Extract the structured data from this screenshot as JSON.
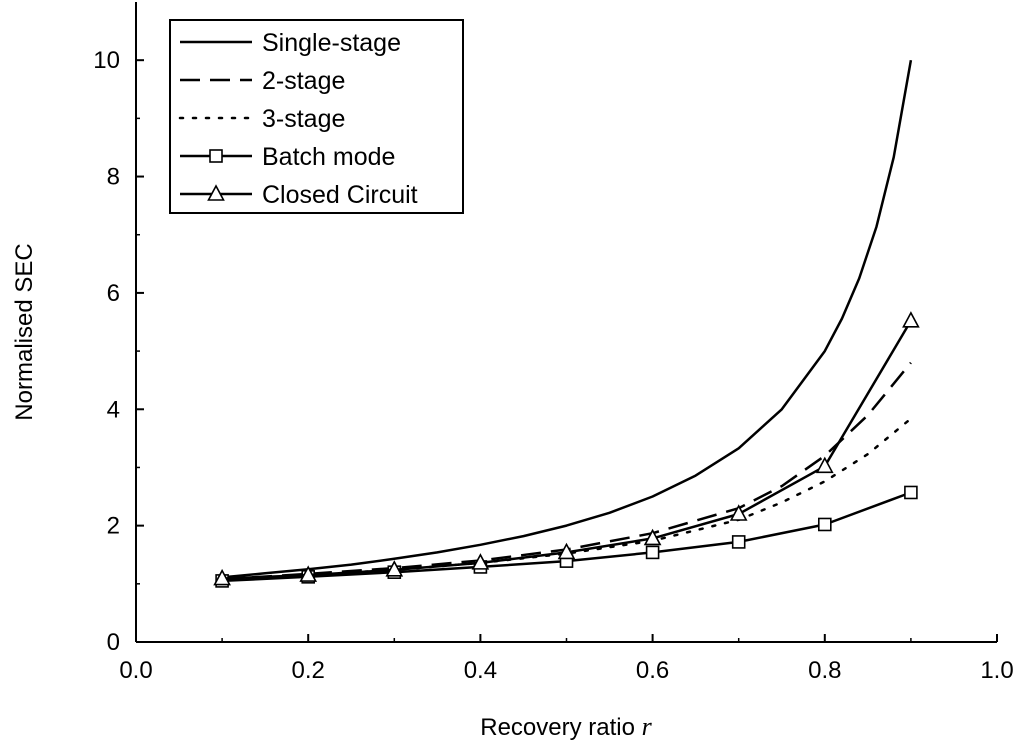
{
  "chart_data": {
    "type": "line",
    "title": "",
    "xlabel": "Recovery ratio",
    "xlabel_var": "r",
    "ylabel": "Normalised SEC",
    "xlim": [
      0.0,
      1.0
    ],
    "ylim": [
      0,
      11
    ],
    "xticks": [
      0.0,
      0.2,
      0.4,
      0.6,
      0.8,
      1.0
    ],
    "xtick_labels": [
      "0.0",
      "0.2",
      "0.4",
      "0.6",
      "0.8",
      "1.0"
    ],
    "yticks": [
      0,
      2,
      4,
      6,
      8,
      10
    ],
    "ytick_labels": [
      "0",
      "2",
      "4",
      "6",
      "8",
      "10"
    ],
    "grid": false,
    "legend_position": "top-left",
    "series": [
      {
        "name": "Single-stage",
        "style": "solid",
        "marker": "none",
        "x": [
          0.1,
          0.15,
          0.2,
          0.25,
          0.3,
          0.35,
          0.4,
          0.45,
          0.5,
          0.55,
          0.6,
          0.65,
          0.7,
          0.75,
          0.8,
          0.82,
          0.84,
          0.86,
          0.88,
          0.9
        ],
        "y": [
          1.11,
          1.18,
          1.25,
          1.33,
          1.43,
          1.54,
          1.67,
          1.82,
          2.0,
          2.22,
          2.5,
          2.86,
          3.33,
          4.0,
          5.0,
          5.56,
          6.25,
          7.14,
          8.33,
          10.0
        ]
      },
      {
        "name": "2-stage",
        "style": "dashed",
        "marker": "none",
        "x": [
          0.1,
          0.2,
          0.3,
          0.4,
          0.5,
          0.6,
          0.7,
          0.75,
          0.8,
          0.85,
          0.9
        ],
        "y": [
          1.08,
          1.17,
          1.27,
          1.4,
          1.59,
          1.87,
          2.3,
          2.68,
          3.2,
          3.9,
          4.8
        ]
      },
      {
        "name": "3-stage",
        "style": "dotted",
        "marker": "none",
        "x": [
          0.1,
          0.2,
          0.3,
          0.4,
          0.5,
          0.6,
          0.7,
          0.75,
          0.8,
          0.85,
          0.9
        ],
        "y": [
          1.07,
          1.15,
          1.24,
          1.36,
          1.52,
          1.74,
          2.1,
          2.4,
          2.76,
          3.23,
          3.84
        ]
      },
      {
        "name": "Batch mode",
        "style": "solid",
        "marker": "square",
        "x": [
          0.1,
          0.2,
          0.3,
          0.4,
          0.5,
          0.6,
          0.7,
          0.8,
          0.9
        ],
        "y": [
          1.05,
          1.12,
          1.2,
          1.29,
          1.39,
          1.54,
          1.72,
          2.02,
          2.57
        ]
      },
      {
        "name": "Closed Circuit",
        "style": "solid",
        "marker": "triangle",
        "x": [
          0.1,
          0.2,
          0.3,
          0.4,
          0.5,
          0.6,
          0.7,
          0.8,
          0.9
        ],
        "y": [
          1.09,
          1.15,
          1.24,
          1.36,
          1.54,
          1.78,
          2.2,
          3.02,
          5.52
        ]
      }
    ]
  }
}
